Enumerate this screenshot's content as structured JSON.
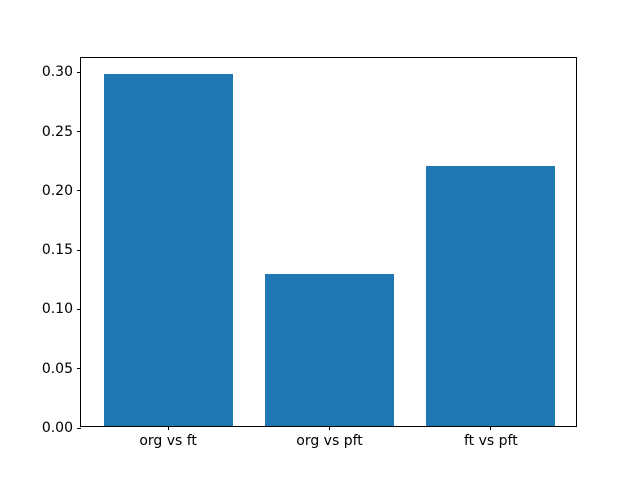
{
  "figure": {
    "background_color": "#ffffff",
    "frame_color": "#000000",
    "tick_text_color": "#000000"
  },
  "chart_data": {
    "type": "bar",
    "title": "",
    "xlabel": "",
    "ylabel": "",
    "categories": [
      "org vs ft",
      "org vs pft",
      "ft vs pft"
    ],
    "values": [
      0.297,
      0.128,
      0.219
    ],
    "bar_color": "#1f77b4",
    "ylim": [
      0,
      0.312
    ],
    "yticks": [
      0.0,
      0.05,
      0.1,
      0.15,
      0.2,
      0.25,
      0.3
    ],
    "ytick_labels": [
      "0.00",
      "0.05",
      "0.10",
      "0.15",
      "0.20",
      "0.25",
      "0.30"
    ],
    "grid": false,
    "legend": null,
    "bar_width_fraction": 0.8,
    "x_margin_units": 0.54
  }
}
